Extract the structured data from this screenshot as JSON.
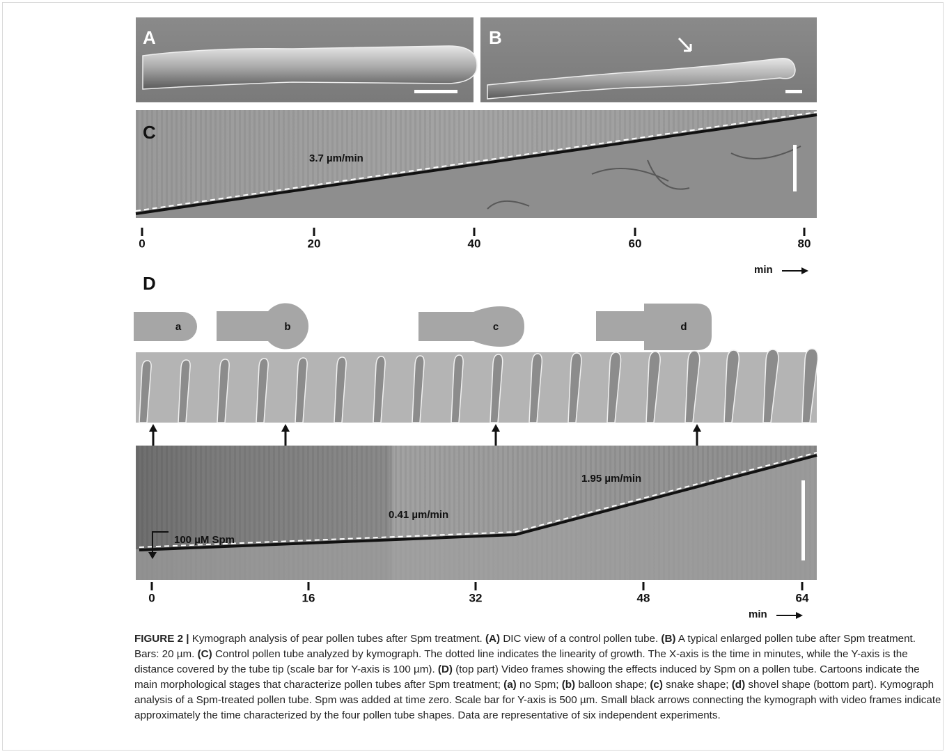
{
  "panels": {
    "a": {
      "label": "A"
    },
    "b": {
      "label": "B"
    },
    "c": {
      "label": "C",
      "speed": "3.7 µm/min",
      "xticks": [
        "0",
        "20",
        "40",
        "60",
        "80"
      ],
      "xunit": "min"
    },
    "d": {
      "label": "D",
      "cartoons": [
        "a",
        "b",
        "c",
        "d"
      ],
      "speed_early": "0.41 µm/min",
      "speed_late": "1.95 µm/min",
      "treatment": "100 µM Spm",
      "xticks": [
        "0",
        "16",
        "32",
        "48",
        "64"
      ],
      "xunit": "min"
    }
  },
  "caption": {
    "runs": [
      {
        "text": "FIGURE 2 |",
        "bold": true
      },
      {
        "text": " Kymograph analysis of pear pollen tubes after Spm treatment. ",
        "bold": false
      },
      {
        "text": "(A)",
        "bold": true
      },
      {
        "text": " DIC view of a control pollen tube. ",
        "bold": false
      },
      {
        "text": "(B)",
        "bold": true
      },
      {
        "text": " A typical enlarged pollen tube after Spm treatment. Bars: 20 µm. ",
        "bold": false
      },
      {
        "text": "(C)",
        "bold": true
      },
      {
        "text": " Control pollen tube analyzed by kymograph. The dotted line indicates the linearity of growth. The X-axis is the time in minutes, while the Y-axis is the distance covered by the tube tip (scale bar for Y-axis is 100 µm). ",
        "bold": false
      },
      {
        "text": "(D)",
        "bold": true
      },
      {
        "text": " (top part) Video frames showing the effects induced by Spm on a pollen tube. Cartoons indicate the main morphological stages that characterize pollen tubes after Spm treatment; ",
        "bold": false
      },
      {
        "text": "(a)",
        "bold": true
      },
      {
        "text": " no Spm; ",
        "bold": false
      },
      {
        "text": "(b)",
        "bold": true
      },
      {
        "text": " balloon shape; ",
        "bold": false
      },
      {
        "text": "(c)",
        "bold": true
      },
      {
        "text": " snake shape; ",
        "bold": false
      },
      {
        "text": "(d)",
        "bold": true
      },
      {
        "text": " shovel shape (bottom part). Kymograph analysis of a Spm-treated pollen tube. Spm was added at time zero. Scale bar for Y-axis is 500 µm. Small black arrows connecting the kymograph with video frames indicate approximately the time characterized by the four pollen tube shapes. Data are representative of six independent experiments.",
        "bold": false
      }
    ]
  }
}
